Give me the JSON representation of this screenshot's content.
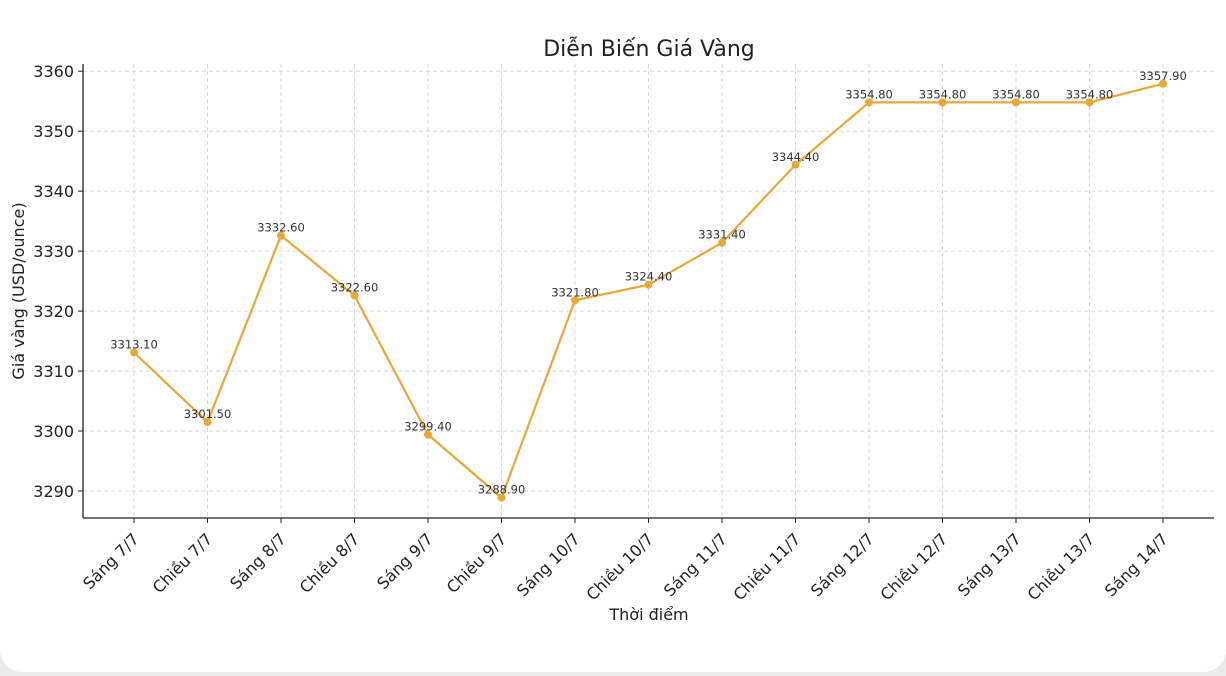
{
  "chart_data": {
    "type": "line",
    "title": "Diễn Biến Giá Vàng",
    "xlabel": "Thời điểm",
    "ylabel": "Giá vàng (USD/ounce)",
    "categories": [
      "Sáng 7/7",
      "Chiều 7/7",
      "Sáng 8/7",
      "Chiều 8/7",
      "Sáng 9/7",
      "Chiều 9/7",
      "Sáng 10/7",
      "Chiều 10/7",
      "Sáng 11/7",
      "Chiều 11/7",
      "Sáng 12/7",
      "Chiều 12/7",
      "Sáng 13/7",
      "Chiều 13/7",
      "Sáng 14/7"
    ],
    "values": [
      3313.1,
      3301.5,
      3332.6,
      3322.6,
      3299.4,
      3288.9,
      3321.8,
      3324.4,
      3331.4,
      3344.4,
      3354.8,
      3354.8,
      3354.8,
      3354.8,
      3357.9
    ],
    "value_labels": [
      "3313.10",
      "3301.50",
      "3332.60",
      "3322.60",
      "3299.40",
      "3288.90",
      "3321.80",
      "3324.40",
      "3331.40",
      "3344.40",
      "3354.80",
      "3354.80",
      "3354.80",
      "3354.80",
      "3357.90"
    ],
    "yticks": [
      "3290",
      "3300",
      "3310",
      "3320",
      "3330",
      "3340",
      "3350",
      "3360"
    ],
    "ylim": [
      3285.5,
      3361.2
    ],
    "grid": true,
    "line_color": "#e8a838",
    "marker": "circle"
  }
}
